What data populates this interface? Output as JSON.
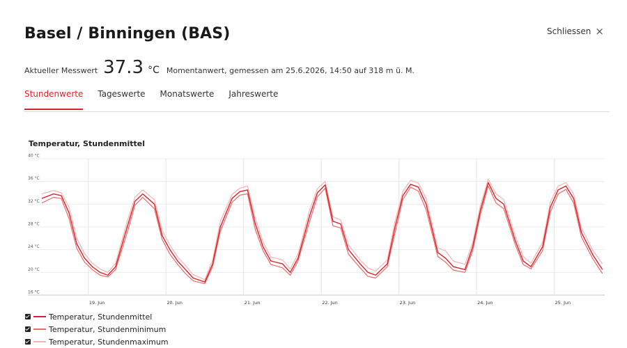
{
  "header": {
    "title": "Basel / Binningen (BAS)",
    "close_label": "Schliessen",
    "close_icon": "×"
  },
  "measurement": {
    "label": "Aktueller Messwert",
    "value": "37.3",
    "unit": "°C",
    "description": "Momentanwert, gemessen am 25.6.2026, 14:50 auf 318 m ü. M."
  },
  "tabs": [
    {
      "label": "Stundenwerte",
      "active": true
    },
    {
      "label": "Tageswerte",
      "active": false
    },
    {
      "label": "Monatswerte",
      "active": false
    },
    {
      "label": "Jahreswerte",
      "active": false
    }
  ],
  "colors": {
    "accent": "#d8232a",
    "mean": "#d8232a",
    "min": "#e86a6a",
    "max": "#f2b3b3"
  },
  "legend": [
    {
      "label": "Temperatur, Stundenmittel",
      "color": "#d8232a",
      "checked": true
    },
    {
      "label": "Temperatur, Stundenminimum",
      "color": "#e86a6a",
      "checked": true
    },
    {
      "label": "Temperatur, Stundenmaximum",
      "color": "#f2b3b3",
      "checked": true
    }
  ],
  "chart_data": {
    "type": "line",
    "title": "Temperatur, Stundenmittel",
    "ylim": [
      16,
      40
    ],
    "yticks": [
      "40 °C",
      "36 °C",
      "32 °C",
      "28 °C",
      "24 °C",
      "20 °C",
      "16 °C"
    ],
    "yvalues": [
      40,
      36,
      32,
      28,
      24,
      20,
      16
    ],
    "xlim": [
      18.4,
      25.65
    ],
    "xticks": [
      "19. Jun",
      "20. Jun",
      "21. Jun",
      "22. Jun",
      "23. Jun",
      "24. Jun",
      "25. Jun"
    ],
    "xvalues": [
      19,
      20,
      21,
      22,
      23,
      24,
      25
    ],
    "grid": true,
    "legend_position": "bottom-left",
    "series": [
      {
        "name": "Temperatur, Stundenmittel",
        "color": "#d8232a",
        "x": [
          18.4,
          18.55,
          18.65,
          18.75,
          18.85,
          18.95,
          19.05,
          19.15,
          19.25,
          19.35,
          19.5,
          19.6,
          19.7,
          19.85,
          19.95,
          20.05,
          20.15,
          20.25,
          20.35,
          20.5,
          20.6,
          20.7,
          20.85,
          20.95,
          21.05,
          21.15,
          21.25,
          21.35,
          21.5,
          21.6,
          21.7,
          21.85,
          21.95,
          22.05,
          22.15,
          22.25,
          22.35,
          22.5,
          22.6,
          22.7,
          22.85,
          22.95,
          23.05,
          23.15,
          23.25,
          23.35,
          23.5,
          23.6,
          23.7,
          23.85,
          23.95,
          24.05,
          24.15,
          24.25,
          24.35,
          24.5,
          24.6,
          24.7,
          24.85,
          24.95,
          25.05,
          25.15,
          25.25,
          25.35,
          25.5,
          25.62
        ],
        "y": [
          33.0,
          33.8,
          33.5,
          30.5,
          25.0,
          22.5,
          21.0,
          20.0,
          19.5,
          21.0,
          28.0,
          32.5,
          33.8,
          32.0,
          26.5,
          24.0,
          22.0,
          20.5,
          19.0,
          18.3,
          21.5,
          28.0,
          33.0,
          34.2,
          34.5,
          28.5,
          24.5,
          22.0,
          21.5,
          20.0,
          22.5,
          30.0,
          34.0,
          35.4,
          29.0,
          28.5,
          24.0,
          21.5,
          20.0,
          19.5,
          21.5,
          28.0,
          33.5,
          35.5,
          35.0,
          32.0,
          23.5,
          22.5,
          21.0,
          20.5,
          24.5,
          31.0,
          35.8,
          33.0,
          32.0,
          25.5,
          22.0,
          21.0,
          24.5,
          31.5,
          34.5,
          35.2,
          33.0,
          27.0,
          23.0,
          20.5
        ]
      },
      {
        "name": "Temperatur, Stundenminimum",
        "color": "#e86a6a",
        "x": [
          18.4,
          18.55,
          18.65,
          18.75,
          18.85,
          18.95,
          19.05,
          19.15,
          19.25,
          19.35,
          19.5,
          19.6,
          19.7,
          19.85,
          19.95,
          20.05,
          20.15,
          20.25,
          20.35,
          20.5,
          20.6,
          20.7,
          20.85,
          20.95,
          21.05,
          21.15,
          21.25,
          21.35,
          21.5,
          21.6,
          21.7,
          21.85,
          21.95,
          22.05,
          22.15,
          22.25,
          22.35,
          22.5,
          22.6,
          22.7,
          22.85,
          22.95,
          23.05,
          23.15,
          23.25,
          23.35,
          23.5,
          23.6,
          23.7,
          23.85,
          23.95,
          24.05,
          24.15,
          24.25,
          24.35,
          24.5,
          24.6,
          24.7,
          24.85,
          24.95,
          25.05,
          25.15,
          25.25,
          25.35,
          25.5,
          25.62
        ],
        "y": [
          32.2,
          33.2,
          33.0,
          29.5,
          24.2,
          21.8,
          20.5,
          19.5,
          19.2,
          20.5,
          27.0,
          31.8,
          33.2,
          31.2,
          25.8,
          23.2,
          21.4,
          19.8,
          18.5,
          18.0,
          21.0,
          27.2,
          32.3,
          33.6,
          33.8,
          27.5,
          23.8,
          21.4,
          20.8,
          19.5,
          22.0,
          29.0,
          33.3,
          34.8,
          28.2,
          27.8,
          23.2,
          20.8,
          19.3,
          19.0,
          21.0,
          27.0,
          32.8,
          35.0,
          34.3,
          31.0,
          22.8,
          21.8,
          20.4,
          20.0,
          23.8,
          30.2,
          35.2,
          32.2,
          31.2,
          24.8,
          21.4,
          20.6,
          23.8,
          30.6,
          33.8,
          34.6,
          32.2,
          26.2,
          22.3,
          19.8
        ]
      },
      {
        "name": "Temperatur, Stundenmaximum",
        "color": "#f2b3b3",
        "x": [
          18.4,
          18.55,
          18.65,
          18.75,
          18.85,
          18.95,
          19.05,
          19.15,
          19.25,
          19.35,
          19.5,
          19.6,
          19.7,
          19.85,
          19.95,
          20.05,
          20.15,
          20.25,
          20.35,
          20.5,
          20.6,
          20.7,
          20.85,
          20.95,
          21.05,
          21.15,
          21.25,
          21.35,
          21.5,
          21.6,
          21.7,
          21.85,
          21.95,
          22.05,
          22.15,
          22.25,
          22.35,
          22.5,
          22.6,
          22.7,
          22.85,
          22.95,
          23.05,
          23.15,
          23.25,
          23.35,
          23.5,
          23.6,
          23.7,
          23.85,
          23.95,
          24.05,
          24.15,
          24.25,
          24.35,
          24.5,
          24.6,
          24.7,
          24.85,
          24.95,
          25.05,
          25.15,
          25.25,
          25.35,
          25.5,
          25.62
        ],
        "y": [
          33.8,
          34.4,
          34.0,
          31.5,
          26.0,
          23.3,
          21.6,
          20.6,
          20.0,
          21.6,
          29.0,
          33.2,
          34.5,
          32.8,
          27.4,
          24.8,
          22.7,
          21.2,
          19.6,
          18.7,
          22.2,
          29.0,
          33.7,
          34.8,
          35.2,
          29.5,
          25.3,
          22.7,
          22.2,
          20.6,
          23.2,
          31.0,
          34.7,
          36.0,
          29.8,
          29.2,
          24.8,
          22.2,
          20.8,
          20.2,
          22.2,
          29.0,
          34.2,
          36.2,
          35.7,
          33.0,
          24.3,
          23.8,
          22.0,
          21.4,
          25.3,
          31.8,
          36.4,
          33.8,
          32.8,
          26.3,
          22.8,
          21.6,
          25.3,
          32.4,
          35.2,
          35.8,
          33.8,
          27.8,
          23.8,
          21.5
        ]
      }
    ]
  }
}
